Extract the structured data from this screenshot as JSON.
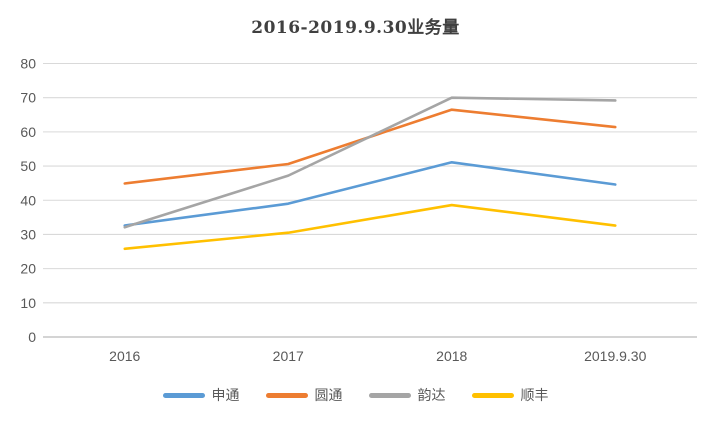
{
  "page": {
    "background": "#FFFFFF"
  },
  "chart_data": {
    "type": "line",
    "title": "2016-2019.9.30业务量",
    "categories": [
      "2016",
      "2017",
      "2018",
      "2019.9.30"
    ],
    "series": [
      {
        "name": "申通",
        "color": "#5B9BD5",
        "values": [
          32.6,
          39.0,
          51.1,
          44.6
        ]
      },
      {
        "name": "圆通",
        "color": "#ED7D31",
        "values": [
          44.9,
          50.6,
          66.5,
          61.4
        ]
      },
      {
        "name": "韵达",
        "color": "#A5A5A5",
        "values": [
          32.1,
          47.2,
          70.0,
          69.2
        ]
      },
      {
        "name": "顺丰",
        "color": "#FFC000",
        "values": [
          25.8,
          30.5,
          38.6,
          32.6
        ]
      }
    ],
    "ylim": [
      0,
      80
    ],
    "y_tick_step": 10,
    "y_tick_labels": [
      "0",
      "10",
      "20",
      "30",
      "40",
      "50",
      "60",
      "70",
      "80"
    ],
    "grid": true,
    "legend_position": "bottom",
    "colors": {
      "gridline": "#D9D9D9",
      "axis_line": "#C6C6C6",
      "axis_text": "#595959",
      "title_text": "#404040"
    }
  }
}
